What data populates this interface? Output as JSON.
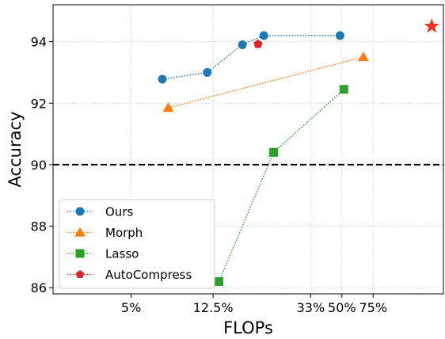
{
  "chart_data": {
    "type": "line",
    "title": "",
    "xlabel": "FLOPs",
    "ylabel": "Accuracy",
    "ylim": [
      85.8,
      95.2
    ],
    "xlim": [
      0,
      10
    ],
    "x_ticks": [
      {
        "label": "5%",
        "pos": 2.0
      },
      {
        "label": "12.5%",
        "pos": 4.1
      },
      {
        "label": "33%",
        "pos": 6.6
      },
      {
        "label": "50%",
        "pos": 7.4
      },
      {
        "label": "75%",
        "pos": 8.2
      }
    ],
    "y_ticks": [
      86,
      88,
      90,
      92,
      94
    ],
    "grid": true,
    "legend_position": "lower-left",
    "reference_line": {
      "y": 90,
      "style": "dashed",
      "color": "#000000"
    },
    "series": [
      {
        "name": "Ours",
        "color": "#1f77b4",
        "marker": "circle",
        "x": [
          2.8,
          3.95,
          4.85,
          5.4,
          7.35
        ],
        "y": [
          92.78,
          93.0,
          93.9,
          94.2,
          94.2
        ]
      },
      {
        "name": "Morph",
        "color": "#ff7f0e",
        "marker": "triangle",
        "x": [
          2.95,
          7.95
        ],
        "y": [
          91.85,
          93.5
        ]
      },
      {
        "name": "Lasso",
        "color": "#2ca02c",
        "marker": "square",
        "x": [
          4.25,
          5.65,
          7.45
        ],
        "y": [
          86.2,
          90.4,
          92.45
        ]
      },
      {
        "name": "AutoCompress",
        "color": "#d62728",
        "marker": "pentagon",
        "x": [
          5.25
        ],
        "y": [
          93.92
        ]
      }
    ],
    "highlight_point": {
      "x": 9.7,
      "y": 94.5,
      "color": "#ee3322",
      "marker": "star"
    }
  }
}
